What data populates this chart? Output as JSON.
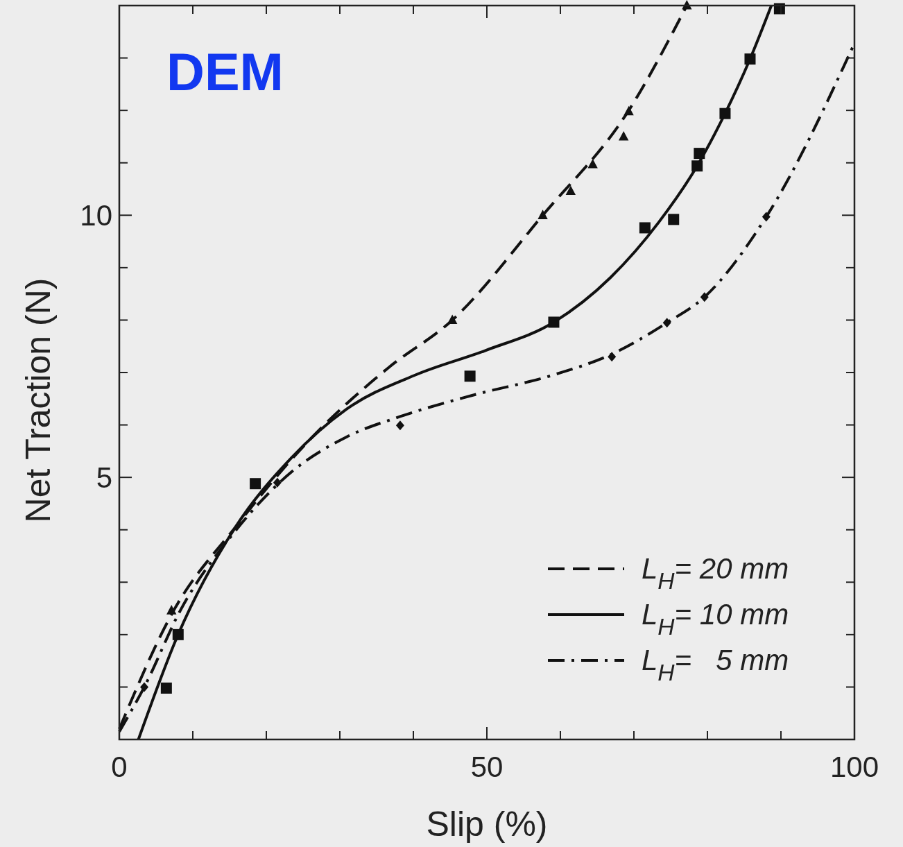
{
  "chart_data": {
    "type": "line",
    "xlabel": "Slip  (%)",
    "ylabel": "Net Traction  (N)",
    "annotations": [
      "DEM"
    ],
    "xlim": [
      0,
      100
    ],
    "ylim": [
      0,
      14
    ],
    "xticks": [
      0,
      {
        "value": 10,
        "label": null
      },
      {
        "value": 20,
        "label": null
      },
      {
        "value": 30,
        "label": null
      },
      {
        "value": 40,
        "label": null
      },
      50,
      {
        "value": 60,
        "label": null
      },
      {
        "value": 70,
        "label": null
      },
      {
        "value": 80,
        "label": null
      },
      {
        "value": 90,
        "label": null
      },
      100
    ],
    "yticks": [
      {
        "value": 0,
        "label": null
      },
      {
        "value": 1,
        "label": null
      },
      {
        "value": 2,
        "label": null
      },
      {
        "value": 3,
        "label": null
      },
      {
        "value": 4,
        "label": null
      },
      5,
      {
        "value": 6,
        "label": null
      },
      {
        "value": 7,
        "label": null
      },
      {
        "value": 8,
        "label": null
      },
      {
        "value": 9,
        "label": null
      },
      10,
      {
        "value": 11,
        "label": null
      },
      {
        "value": 12,
        "label": null
      },
      {
        "value": 13,
        "label": null
      },
      {
        "value": 14,
        "label": null
      }
    ],
    "legend": "bottom right",
    "series": [
      {
        "name": "L$_{H}$= 20 mm",
        "line_style": "dashed",
        "color": "#111111",
        "x": [
          0,
          7.4,
          15.8,
          25.3,
          36.6,
          45.3,
          57.6,
          69.3,
          77.2
        ],
        "values": [
          0.2,
          2.46,
          4.05,
          5.63,
          7.09,
          8.0,
          10.0,
          12.0,
          14.0
        ]
      },
      {
        "name": "L$_{H}$= 10 mm",
        "line_style": "solid",
        "color": "#111111",
        "x": [
          2.6,
          8,
          15.8,
          23.4,
          30.9,
          40.4,
          49.8,
          59.1,
          66.8,
          73.4,
          78.6,
          82.4,
          85.8,
          88.7
        ],
        "values": [
          0,
          2,
          4.05,
          5.37,
          6.3,
          6.96,
          7.42,
          7.96,
          8.81,
          9.87,
          10.94,
          11.94,
          12.98,
          14.0
        ]
      },
      {
        "name": "L$_{H}$=   5 mm",
        "line_style": "dashdot",
        "color": "#111111",
        "x": [
          0,
          3.4,
          8.3,
          15.8,
          23.4,
          30.9,
          38.2,
          47.9,
          59.2,
          67.0,
          74.5,
          79.6,
          88.0,
          100
        ],
        "values": [
          0.15,
          1.0,
          2.46,
          3.98,
          5.1,
          5.77,
          6.16,
          6.56,
          6.96,
          7.35,
          7.95,
          8.44,
          9.97,
          13.28
        ]
      },
      {
        "type": "scatter",
        "marker": "triangle",
        "color": "#111111",
        "x": [
          7.1,
          45.3,
          57.6,
          61.4,
          64.4,
          68.6,
          69.3,
          77.2
        ],
        "values": [
          2.46,
          8.0,
          10.0,
          10.46,
          10.97,
          11.5,
          11.98,
          14.0
        ]
      },
      {
        "type": "scatter",
        "marker": "square",
        "color": "#111111",
        "x": [
          6.4,
          8.0,
          18.5,
          47.7,
          59.1,
          71.5,
          75.4,
          78.6,
          78.9,
          82.4,
          85.8,
          89.8
        ],
        "values": [
          0.98,
          2.0,
          4.88,
          6.93,
          7.96,
          9.76,
          9.92,
          10.94,
          11.18,
          11.94,
          12.98,
          13.94
        ]
      },
      {
        "type": "scatter",
        "marker": "diamond",
        "color": "#111111",
        "x": [
          3.4,
          21.5,
          38.2,
          67.0,
          74.5,
          79.6,
          88.0
        ],
        "values": [
          1.0,
          4.9,
          5.99,
          7.3,
          7.95,
          8.44,
          9.97
        ]
      }
    ]
  }
}
